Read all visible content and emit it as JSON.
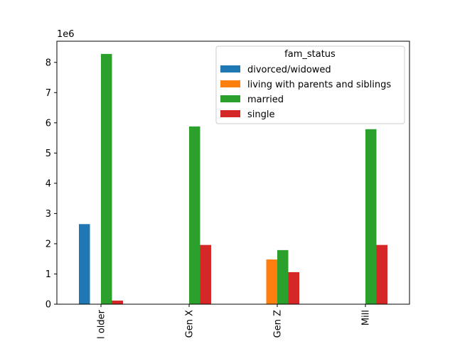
{
  "chart_data": {
    "type": "bar",
    "multiplier_label": "1e6",
    "categories": [
      "Boomers and older",
      "Gen X",
      "Gen Z",
      "Millennials"
    ],
    "tick_labels": [
      "l older",
      "Gen X",
      "Gen Z",
      "Mill"
    ],
    "ylim": [
      0,
      8.7
    ],
    "yticks": [
      0,
      1,
      2,
      3,
      4,
      5,
      6,
      7,
      8
    ],
    "legend": {
      "title": "fam_status",
      "placement": "top-right"
    },
    "series": [
      {
        "name": "divorced/widowed",
        "color": "#1f77b4",
        "values": [
          2.65,
          0,
          0,
          0
        ]
      },
      {
        "name": "living with parents and siblings",
        "color": "#ff7f0e",
        "values": [
          0,
          0,
          1.48,
          0
        ]
      },
      {
        "name": "married",
        "color": "#2ca02c",
        "values": [
          8.28,
          5.88,
          1.79,
          5.79
        ]
      },
      {
        "name": "single",
        "color": "#d62728",
        "values": [
          0.12,
          1.96,
          1.06,
          1.96
        ]
      }
    ]
  }
}
